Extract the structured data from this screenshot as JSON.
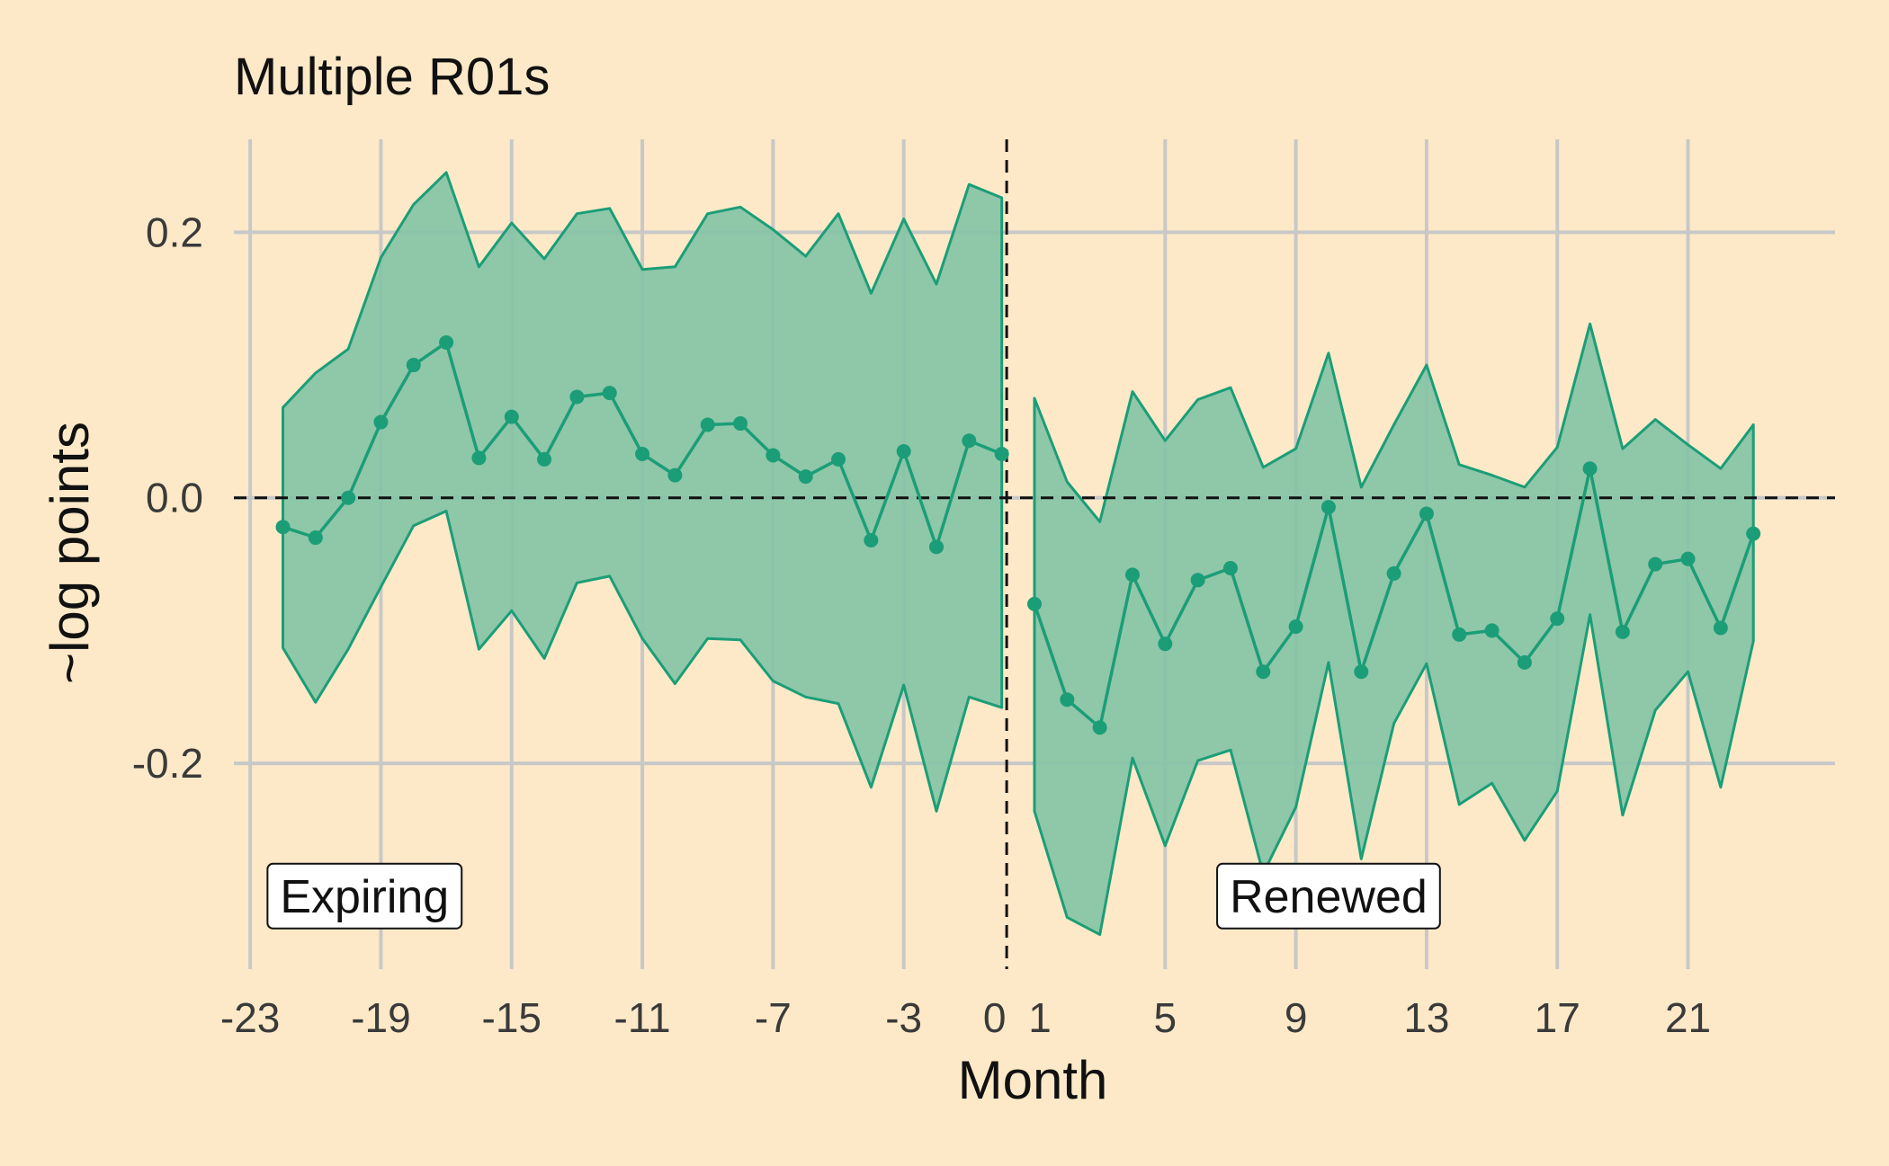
{
  "chart_data": {
    "type": "line",
    "title": "Multiple R01s",
    "xlabel": "Month",
    "ylabel": "~log points",
    "x_ticks": [
      -23,
      -19,
      -15,
      -11,
      -7,
      -3,
      0,
      1,
      5,
      9,
      13,
      17,
      21
    ],
    "x_tick_labels": [
      "-23",
      "-19",
      "-15",
      "-11",
      "-7",
      "-3",
      "0",
      "1",
      "5",
      "9",
      "13",
      "17",
      "21"
    ],
    "y_ticks": [
      -0.2,
      0.0,
      0.2
    ],
    "y_tick_labels": [
      "-0.2",
      "0.0",
      "0.2"
    ],
    "xlim": [
      -23.5,
      25.5
    ],
    "ylim": [
      -0.355,
      0.27
    ],
    "reference_lines": {
      "horizontal_y": 0,
      "vertical_x": 0.15
    },
    "annotations": [
      {
        "text": "Expiring",
        "x": -19.5
      },
      {
        "text": "Renewed",
        "x": 10
      },
      {
        "y": -0.3
      }
    ],
    "colors": {
      "fill": "#86c3a6",
      "line": "#1b9e77",
      "background": "#fde9c8",
      "grid": "#c8c8c8"
    },
    "grid": true,
    "series": [
      {
        "segment": "pre",
        "x": [
          -22,
          -21,
          -20,
          -19,
          -18,
          -17,
          -16,
          -15,
          -14,
          -13,
          -12,
          -11,
          -10,
          -9,
          -8,
          -7,
          -6,
          -5,
          -4,
          -3,
          -2,
          -1,
          0
        ],
        "estimate": [
          -0.022,
          -0.03,
          0.0,
          0.057,
          0.1,
          0.117,
          0.03,
          0.061,
          0.029,
          0.076,
          0.079,
          0.033,
          0.017,
          0.055,
          0.056,
          0.032,
          0.016,
          0.029,
          -0.032,
          0.035,
          -0.037,
          0.043,
          0.033
        ],
        "upper": [
          0.068,
          0.094,
          0.112,
          0.181,
          0.221,
          0.245,
          0.174,
          0.207,
          0.18,
          0.214,
          0.218,
          0.172,
          0.174,
          0.214,
          0.219,
          0.202,
          0.182,
          0.214,
          0.154,
          0.21,
          0.161,
          0.236,
          0.226
        ],
        "lower": [
          -0.113,
          -0.154,
          -0.114,
          -0.067,
          -0.021,
          -0.01,
          -0.114,
          -0.085,
          -0.121,
          -0.064,
          -0.059,
          -0.106,
          -0.14,
          -0.106,
          -0.107,
          -0.138,
          -0.15,
          -0.155,
          -0.218,
          -0.141,
          -0.236,
          -0.15,
          -0.158
        ]
      },
      {
        "segment": "post",
        "x": [
          1,
          2,
          3,
          4,
          5,
          6,
          7,
          8,
          9,
          10,
          11,
          12,
          13,
          14,
          15,
          16,
          17,
          18,
          19,
          20,
          21,
          22,
          23
        ],
        "estimate": [
          -0.08,
          -0.152,
          -0.173,
          -0.058,
          -0.11,
          -0.062,
          -0.053,
          -0.131,
          -0.097,
          -0.007,
          -0.131,
          -0.057,
          -0.012,
          -0.103,
          -0.1,
          -0.124,
          -0.091,
          0.022,
          -0.101,
          -0.05,
          -0.046,
          -0.098,
          -0.027
        ],
        "upper": [
          0.075,
          0.012,
          -0.018,
          0.08,
          0.043,
          0.074,
          0.083,
          0.023,
          0.037,
          0.109,
          0.008,
          0.055,
          0.1,
          0.025,
          0.017,
          0.008,
          0.038,
          0.131,
          0.037,
          0.059,
          0.04,
          0.022,
          0.055
        ],
        "lower": [
          -0.236,
          -0.316,
          -0.329,
          -0.196,
          -0.262,
          -0.198,
          -0.19,
          -0.283,
          -0.233,
          -0.124,
          -0.272,
          -0.17,
          -0.125,
          -0.231,
          -0.215,
          -0.258,
          -0.221,
          -0.088,
          -0.239,
          -0.16,
          -0.131,
          -0.218,
          -0.108
        ]
      }
    ]
  }
}
